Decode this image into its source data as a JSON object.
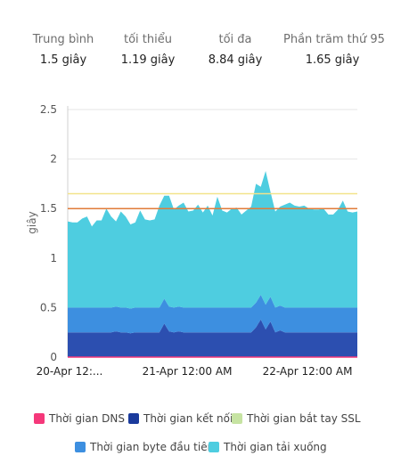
{
  "stats": [
    {
      "label": "Trung bình",
      "value": "1.5 giây"
    },
    {
      "label": "tối thiểu",
      "value": "1.19  giây"
    },
    {
      "label": "tối đa",
      "value": "8.84 giây"
    },
    {
      "label": "Phần trăm thứ 95",
      "value": "1.65 giây"
    }
  ],
  "chart_data": {
    "type": "area",
    "ylabel": "giây",
    "ylim": [
      0,
      2.5
    ],
    "yticks": [
      "2.5",
      "2",
      "1.5",
      "1",
      "0.5",
      "0"
    ],
    "xtick_labels": [
      "20-Apr 12:...",
      "21-Apr 12:00 AM",
      "22-Apr 12:00 AM"
    ],
    "grid": true,
    "legend_position": "bottom",
    "reference_lines": [
      {
        "value": 1.65,
        "color": "#f2e38a"
      },
      {
        "value": 1.5,
        "color": "#e07b39"
      }
    ],
    "series": [
      {
        "name": "Thời gian DNS",
        "color": "#f5387a",
        "values": [
          0,
          0,
          0,
          0,
          0,
          0,
          0,
          0,
          0,
          0,
          0,
          0,
          0,
          0,
          0,
          0,
          0,
          0,
          0,
          0,
          0,
          0,
          0,
          0,
          0,
          0,
          0,
          0,
          0,
          0,
          0,
          0,
          0,
          0,
          0,
          0,
          0,
          0,
          0,
          0,
          0,
          0,
          0,
          0,
          0,
          0,
          0,
          0,
          0,
          0,
          0,
          0,
          0,
          0,
          0,
          0,
          0,
          0,
          0,
          0,
          0
        ]
      },
      {
        "name": "Thời gian kết nối",
        "color": "#2c4fb0",
        "values": [
          0.25,
          0.25,
          0.25,
          0.25,
          0.25,
          0.25,
          0.25,
          0.25,
          0.25,
          0.25,
          0.26,
          0.25,
          0.25,
          0.24,
          0.25,
          0.25,
          0.25,
          0.25,
          0.25,
          0.25,
          0.34,
          0.26,
          0.25,
          0.26,
          0.25,
          0.25,
          0.25,
          0.25,
          0.25,
          0.25,
          0.25,
          0.25,
          0.25,
          0.25,
          0.25,
          0.25,
          0.25,
          0.25,
          0.25,
          0.3,
          0.38,
          0.28,
          0.36,
          0.25,
          0.27,
          0.25,
          0.25,
          0.25,
          0.25,
          0.25,
          0.25,
          0.25,
          0.25,
          0.25,
          0.25,
          0.25,
          0.25,
          0.25,
          0.25,
          0.25,
          0.25
        ]
      },
      {
        "name": "Thời gian bắt tay SSL",
        "color": "#c6e3a2",
        "values": [
          0,
          0,
          0,
          0,
          0,
          0,
          0,
          0,
          0,
          0,
          0,
          0,
          0,
          0,
          0,
          0,
          0,
          0,
          0,
          0,
          0,
          0,
          0,
          0,
          0,
          0,
          0,
          0,
          0,
          0,
          0,
          0,
          0,
          0,
          0,
          0,
          0,
          0,
          0,
          0,
          0,
          0,
          0,
          0,
          0,
          0,
          0,
          0,
          0,
          0,
          0,
          0,
          0,
          0,
          0,
          0,
          0,
          0,
          0,
          0,
          0
        ]
      },
      {
        "name": "Thời gian byte đầu tiên",
        "color": "#3d8fe0",
        "values": [
          0.25,
          0.25,
          0.25,
          0.25,
          0.25,
          0.25,
          0.25,
          0.25,
          0.25,
          0.25,
          0.25,
          0.25,
          0.25,
          0.25,
          0.25,
          0.25,
          0.25,
          0.25,
          0.25,
          0.25,
          0.25,
          0.25,
          0.25,
          0.25,
          0.25,
          0.25,
          0.25,
          0.25,
          0.25,
          0.25,
          0.25,
          0.25,
          0.25,
          0.25,
          0.25,
          0.25,
          0.25,
          0.25,
          0.25,
          0.25,
          0.25,
          0.25,
          0.25,
          0.25,
          0.25,
          0.25,
          0.25,
          0.25,
          0.25,
          0.25,
          0.25,
          0.25,
          0.25,
          0.25,
          0.25,
          0.25,
          0.25,
          0.25,
          0.25,
          0.25,
          0.25
        ]
      },
      {
        "name": "Thời gian tải xuống",
        "color": "#4ecde0",
        "values": [
          0.87,
          0.86,
          0.86,
          0.9,
          0.92,
          0.82,
          0.88,
          0.88,
          1.0,
          0.92,
          0.86,
          0.97,
          0.92,
          0.85,
          0.86,
          0.98,
          0.89,
          0.88,
          0.89,
          1.03,
          1.04,
          1.12,
          0.99,
          1.02,
          1.06,
          0.97,
          0.98,
          1.04,
          0.96,
          1.03,
          0.93,
          1.12,
          0.98,
          0.96,
          1.0,
          1.01,
          0.94,
          0.98,
          1.02,
          1.2,
          1.09,
          1.35,
          1.06,
          0.97,
          1.0,
          1.04,
          1.06,
          1.03,
          1.02,
          1.03,
          1.0,
          0.99,
          0.99,
          1.0,
          0.94,
          0.94,
          0.99,
          1.08,
          0.97,
          0.96,
          0.97
        ]
      }
    ]
  }
}
